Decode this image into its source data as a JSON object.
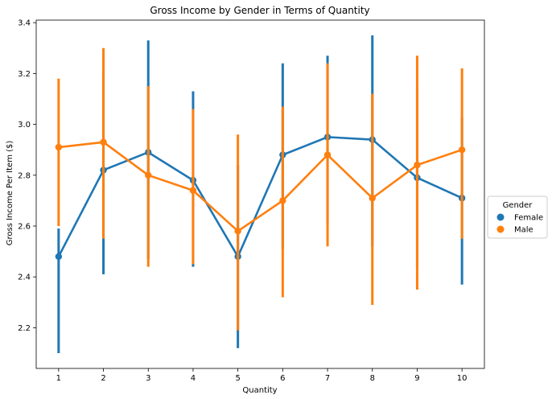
{
  "chart_data": {
    "type": "line",
    "title": "Gross Income by Gender in Terms of Quantity",
    "xlabel": "Quantity",
    "ylabel": "Gross Income Per Item ($)",
    "x": [
      1,
      2,
      3,
      4,
      5,
      6,
      7,
      8,
      9,
      10
    ],
    "ylim": [
      2.04,
      3.41
    ],
    "yticks": [
      2.2,
      2.4,
      2.6,
      2.8,
      3.0,
      3.2,
      3.4
    ],
    "grid": false,
    "legend": {
      "title": "Gender",
      "placement": "right-outside"
    },
    "series": [
      {
        "name": "Female",
        "color": "#1f77b4",
        "values": [
          2.48,
          2.82,
          2.89,
          2.78,
          2.48,
          2.88,
          2.95,
          2.94,
          2.79,
          2.71
        ],
        "ci_low": [
          2.1,
          2.41,
          2.47,
          2.44,
          2.12,
          2.51,
          2.61,
          2.52,
          2.44,
          2.37
        ],
        "ci_high": [
          2.59,
          3.21,
          3.33,
          3.13,
          2.84,
          3.24,
          3.27,
          3.35,
          3.14,
          3.03
        ]
      },
      {
        "name": "Male",
        "color": "#ff7f0e",
        "values": [
          2.91,
          2.93,
          2.8,
          2.74,
          2.58,
          2.7,
          2.88,
          2.71,
          2.84,
          2.9
        ],
        "ci_low": [
          2.6,
          2.55,
          2.44,
          2.45,
          2.19,
          2.32,
          2.52,
          2.29,
          2.35,
          2.55
        ],
        "ci_high": [
          3.18,
          3.3,
          3.15,
          3.06,
          2.96,
          3.07,
          3.24,
          3.12,
          3.27,
          3.22
        ]
      }
    ]
  }
}
